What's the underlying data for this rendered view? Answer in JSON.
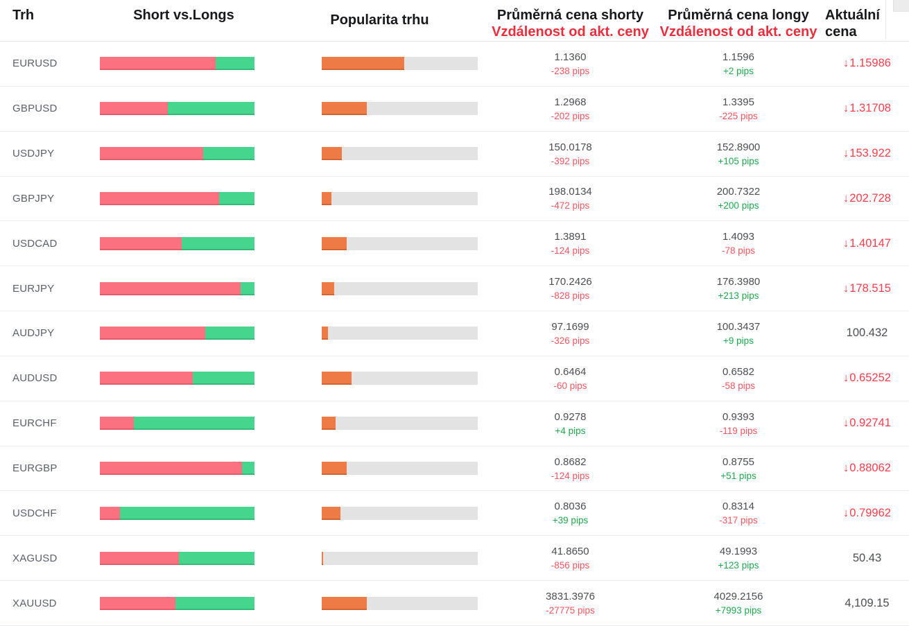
{
  "header": {
    "market": "Trh",
    "short_vs_longs": "Short vs.Longs",
    "popularity": "Popularita trhu",
    "avg_short_title": "Průměrná cena shorty",
    "avg_short_subtitle": "Vzdálenost od akt. ceny",
    "avg_long_title": "Průměrná cena longy",
    "avg_long_subtitle": "Vzdálenost od akt. ceny",
    "current_title_line1": "Aktuální",
    "current_title_line2": "cena"
  },
  "colors": {
    "short_bar": "#fc7180",
    "long_bar": "#45d58c",
    "popularity_bar": "#ee7a45",
    "bar_track": "#e3e3e3",
    "negative_pips": "#f5565f",
    "positive_pips": "#1fa94d",
    "price_down": "#fb3e4c",
    "header_accent_red": "#e92e3e",
    "header_text": "#17191d",
    "market_text": "#5b616c",
    "value_text": "#4b4e53"
  },
  "rows": [
    {
      "market": "EURUSD",
      "short_pct": 75,
      "long_pct": 25,
      "popularity_pct": 53,
      "short_price": "1.1360",
      "short_distance": "-238 pips",
      "long_price": "1.1596",
      "long_distance": "+2 pips",
      "current_price": "1.15986",
      "direction": "down"
    },
    {
      "market": "GBPUSD",
      "short_pct": 44,
      "long_pct": 56,
      "popularity_pct": 29,
      "short_price": "1.2968",
      "short_distance": "-202 pips",
      "long_price": "1.3395",
      "long_distance": "-225 pips",
      "current_price": "1.31708",
      "direction": "down"
    },
    {
      "market": "USDJPY",
      "short_pct": 67,
      "long_pct": 33,
      "popularity_pct": 13,
      "short_price": "150.0178",
      "short_distance": "-392 pips",
      "long_price": "152.8900",
      "long_distance": "+105 pips",
      "current_price": "153.922",
      "direction": "down"
    },
    {
      "market": "GBPJPY",
      "short_pct": 77,
      "long_pct": 23,
      "popularity_pct": 6,
      "short_price": "198.0134",
      "short_distance": "-472 pips",
      "long_price": "200.7322",
      "long_distance": "+200 pips",
      "current_price": "202.728",
      "direction": "down"
    },
    {
      "market": "USDCAD",
      "short_pct": 53,
      "long_pct": 47,
      "popularity_pct": 16,
      "short_price": "1.3891",
      "short_distance": "-124 pips",
      "long_price": "1.4093",
      "long_distance": "-78 pips",
      "current_price": "1.40147",
      "direction": "down"
    },
    {
      "market": "EURJPY",
      "short_pct": 91,
      "long_pct": 9,
      "popularity_pct": 8,
      "short_price": "170.2426",
      "short_distance": "-828 pips",
      "long_price": "176.3980",
      "long_distance": "+213 pips",
      "current_price": "178.515",
      "direction": "down"
    },
    {
      "market": "AUDJPY",
      "short_pct": 68,
      "long_pct": 32,
      "popularity_pct": 4,
      "short_price": "97.1699",
      "short_distance": "-326 pips",
      "long_price": "100.3437",
      "long_distance": "+9 pips",
      "current_price": "100.432",
      "direction": "none"
    },
    {
      "market": "AUDUSD",
      "short_pct": 60,
      "long_pct": 40,
      "popularity_pct": 19,
      "short_price": "0.6464",
      "short_distance": "-60 pips",
      "long_price": "0.6582",
      "long_distance": "-58 pips",
      "current_price": "0.65252",
      "direction": "down"
    },
    {
      "market": "EURCHF",
      "short_pct": 22,
      "long_pct": 78,
      "popularity_pct": 9,
      "short_price": "0.9278",
      "short_distance": "+4 pips",
      "long_price": "0.9393",
      "long_distance": "-119 pips",
      "current_price": "0.92741",
      "direction": "down"
    },
    {
      "market": "EURGBP",
      "short_pct": 92,
      "long_pct": 8,
      "popularity_pct": 16,
      "short_price": "0.8682",
      "short_distance": "-124 pips",
      "long_price": "0.8755",
      "long_distance": "+51 pips",
      "current_price": "0.88062",
      "direction": "down"
    },
    {
      "market": "USDCHF",
      "short_pct": 13,
      "long_pct": 87,
      "popularity_pct": 12,
      "short_price": "0.8036",
      "short_distance": "+39 pips",
      "long_price": "0.8314",
      "long_distance": "-317 pips",
      "current_price": "0.79962",
      "direction": "down"
    },
    {
      "market": "XAGUSD",
      "short_pct": 51,
      "long_pct": 49,
      "popularity_pct": 1,
      "short_price": "41.8650",
      "short_distance": "-856 pips",
      "long_price": "49.1993",
      "long_distance": "+123 pips",
      "current_price": "50.43",
      "direction": "none"
    },
    {
      "market": "XAUUSD",
      "short_pct": 49,
      "long_pct": 51,
      "popularity_pct": 29,
      "short_price": "3831.3976",
      "short_distance": "-27775 pips",
      "long_price": "4029.2156",
      "long_distance": "+7993 pips",
      "current_price": "4,109.15",
      "direction": "none"
    }
  ]
}
